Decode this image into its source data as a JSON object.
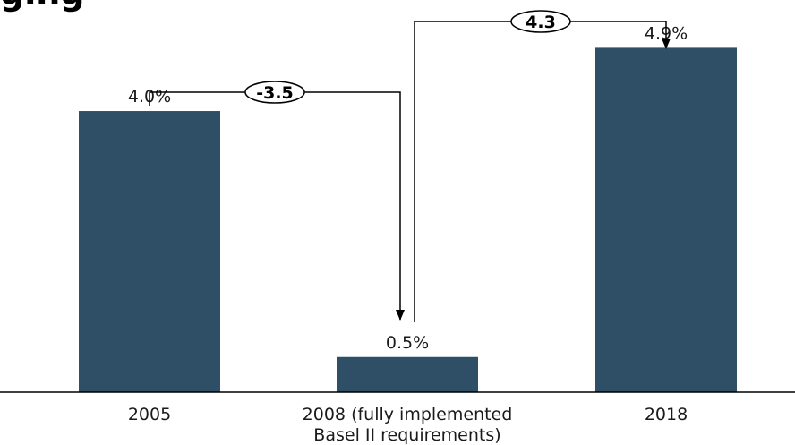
{
  "chart_data": {
    "type": "bar",
    "title_fragment": "ging",
    "categories": [
      "2005",
      "2008 (fully implemented|Basel II requirements)",
      "2018"
    ],
    "values": [
      4.0,
      0.5,
      4.9
    ],
    "value_labels": [
      "4.0%",
      "0.5%",
      "4.9%"
    ],
    "ylim": [
      0,
      5.3
    ],
    "grid": false,
    "bar_color": "#2e4f66",
    "changes": [
      {
        "from": 0,
        "to": 1,
        "label": "-3.5"
      },
      {
        "from": 1,
        "to": 2,
        "label": "4.3"
      }
    ]
  }
}
